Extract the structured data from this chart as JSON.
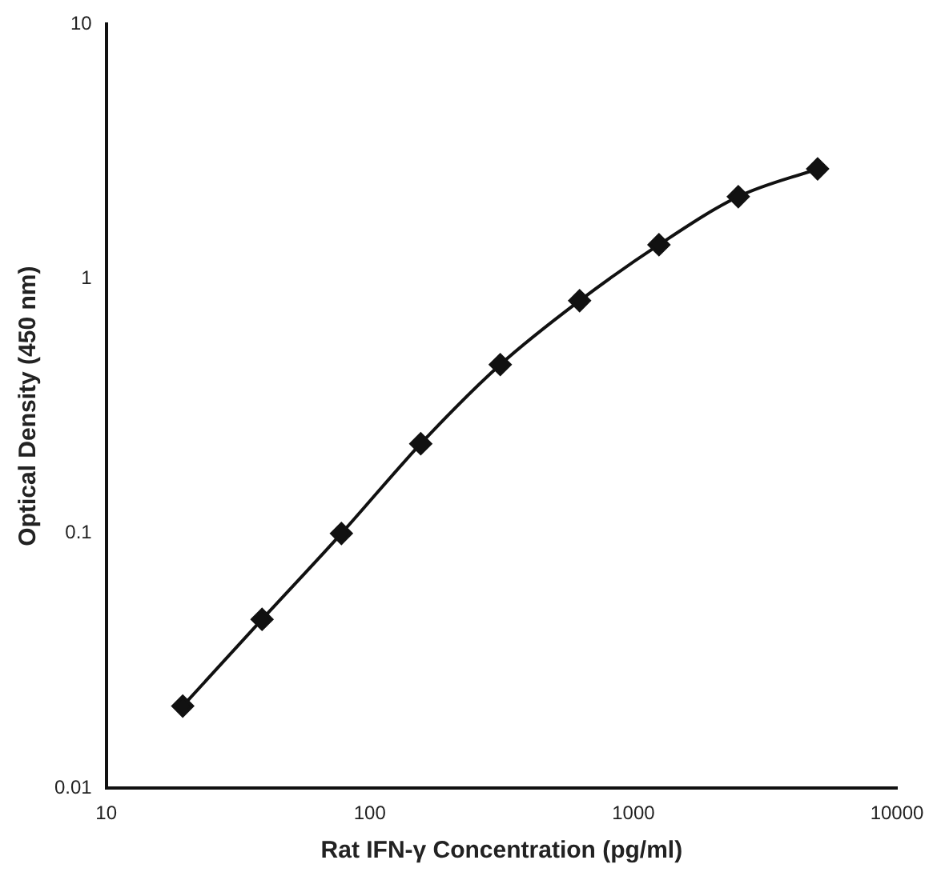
{
  "chart_data": {
    "type": "line",
    "xlabel": "Rat IFN-γ Concentration (pg/ml)",
    "ylabel": "Optical Density (450 nm)",
    "x": [
      19.5,
      39,
      78,
      156,
      312.5,
      625,
      1250,
      2500,
      5000
    ],
    "series": [
      {
        "color": "#111111",
        "values": [
          0.021,
          0.046,
          0.1,
          0.225,
          0.46,
          0.82,
          1.36,
          2.1,
          2.7
        ]
      }
    ],
    "xlim": [
      10,
      10000
    ],
    "xticks": [
      10,
      100,
      1000,
      10000
    ],
    "ylim": [
      0.01,
      10
    ],
    "yticks": [
      0.01,
      0.1,
      1,
      10
    ],
    "log": "xy",
    "grid": false,
    "legend": false,
    "marker": "diamond",
    "line_style": "solid"
  }
}
